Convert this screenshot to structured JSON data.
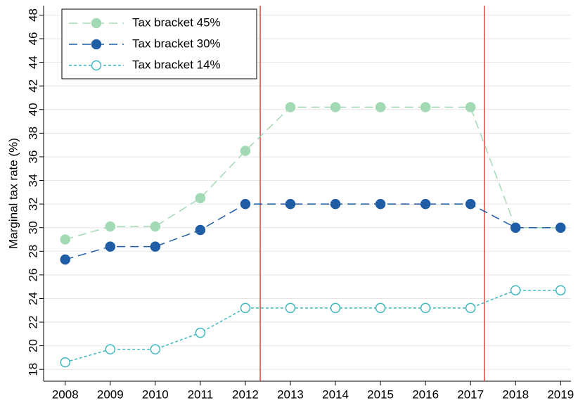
{
  "chart_data": {
    "type": "line",
    "y_label": "Marginal tax rate (%)",
    "x": [
      2008,
      2009,
      2010,
      2011,
      2012,
      2013,
      2014,
      2015,
      2016,
      2017,
      2018,
      2019
    ],
    "xlim": [
      2007.52,
      2019.23
    ],
    "xticks": [
      2008,
      2009,
      2010,
      2011,
      2012,
      2013,
      2014,
      2015,
      2016,
      2017,
      2018,
      2019
    ],
    "ylim": [
      17,
      48.8
    ],
    "yticks": [
      18,
      20,
      22,
      24,
      26,
      28,
      30,
      32,
      34,
      36,
      38,
      40,
      42,
      44,
      46,
      48
    ],
    "grid": true,
    "legend": "upper-left",
    "vlines": [
      2012.33,
      2017.31
    ],
    "vline_color": "#e8413f",
    "series": [
      {
        "name": "Tax bracket 45%",
        "color": "#a3dab5",
        "linestyle": "dashed",
        "marker": "filled",
        "values": [
          29.0,
          30.1,
          30.1,
          32.5,
          36.5,
          40.2,
          40.2,
          40.2,
          40.2,
          40.2,
          30.0,
          30.0
        ]
      },
      {
        "name": "Tax bracket 30%",
        "color": "#1f5da6",
        "linestyle": "dashed",
        "marker": "filled",
        "values": [
          27.3,
          28.4,
          28.4,
          29.8,
          32.0,
          32.0,
          32.0,
          32.0,
          32.0,
          32.0,
          30.0,
          30.0
        ]
      },
      {
        "name": "Tax bracket 14%",
        "color": "#3cb8c0",
        "linestyle": "dotted",
        "marker": "hollow",
        "values": [
          18.6,
          19.7,
          19.7,
          21.1,
          23.2,
          23.2,
          23.2,
          23.2,
          23.2,
          23.2,
          24.7,
          24.7
        ]
      }
    ]
  }
}
